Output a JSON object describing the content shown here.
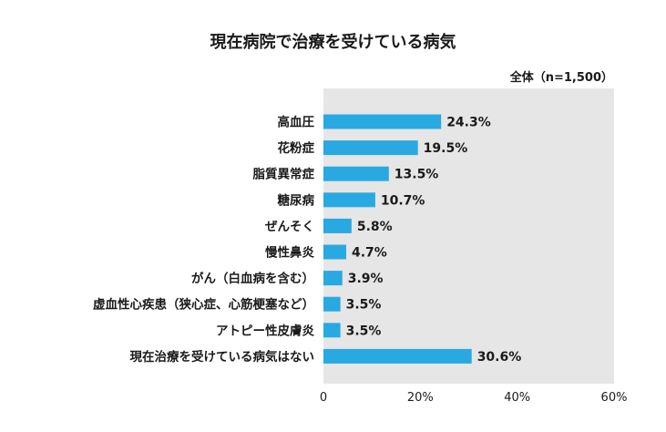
{
  "chart_data": {
    "type": "bar",
    "orientation": "horizontal",
    "title": "現在病院で治療を受けている病気",
    "subtitle": "全体（n=1,500）",
    "xlabel": "",
    "ylabel": "",
    "xlim": [
      0,
      60
    ],
    "x_ticks": [
      "0",
      "20%",
      "40%",
      "60%"
    ],
    "grid": false,
    "bar_color": "#29a9e1",
    "plot_background": "#e6e6e6",
    "categories": [
      "高血圧",
      "花粉症",
      "脂質異常症",
      "糖尿病",
      "ぜんそく",
      "慢性鼻炎",
      "がん（白血病を含む）",
      "虚血性心疾患（狭心症、心筋梗塞など）",
      "アトピー性皮膚炎",
      "現在治療を受けている病気はない"
    ],
    "values": [
      24.3,
      19.5,
      13.5,
      10.7,
      5.8,
      4.7,
      3.9,
      3.5,
      3.5,
      30.6
    ],
    "value_labels": [
      "24.3%",
      "19.5%",
      "13.5%",
      "10.7%",
      "5.8%",
      "4.7%",
      "3.9%",
      "3.5%",
      "3.5%",
      "30.6%"
    ]
  }
}
